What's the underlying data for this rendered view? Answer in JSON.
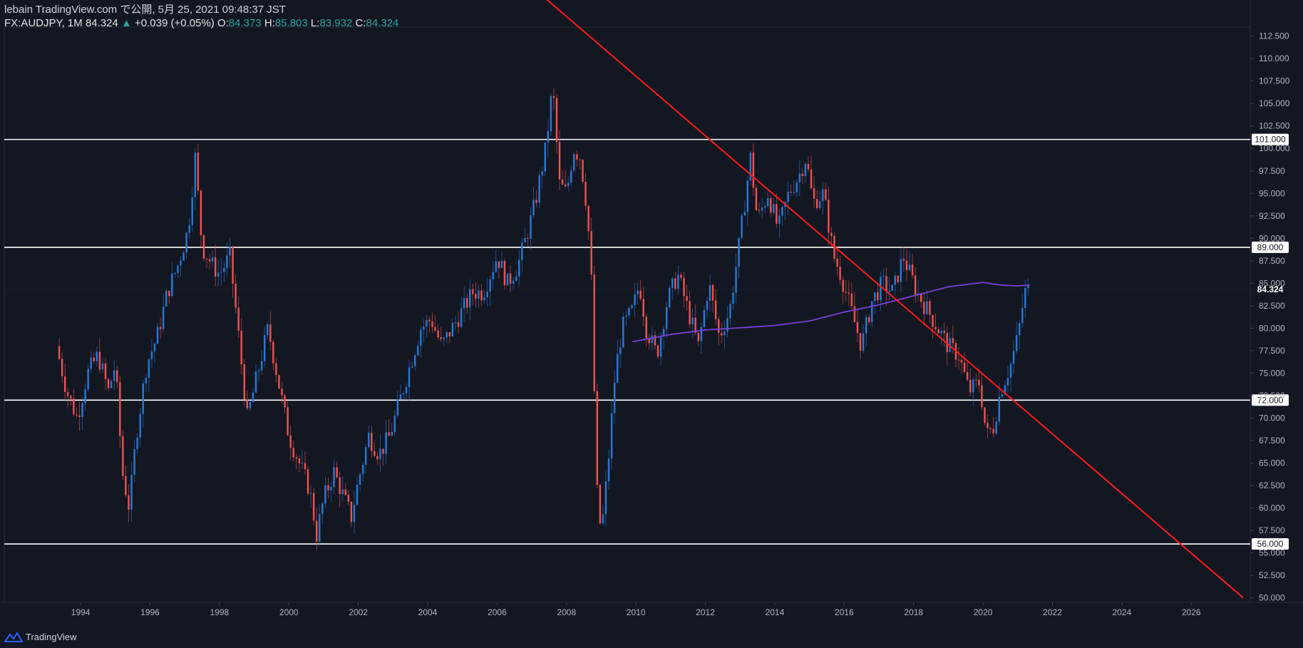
{
  "header": {
    "line1": "lebain TradingView.com で公開, 5月 25, 2021 09:48:37 JST",
    "symbol": "FX:AUDJPY, 1M",
    "last": "84.324",
    "change": "+0.039 (+0.05%)",
    "o_label": "O:",
    "o_value": "84.373",
    "h_label": "H:",
    "h_value": "85.803",
    "l_label": "L:",
    "l_value": "83.932",
    "c_label": "C:",
    "c_value": "84.324"
  },
  "footer": {
    "brand": "TradingView",
    "logo_icon": "tradingview-logo-icon"
  },
  "colors": {
    "background": "#131722",
    "up": "#2979d6",
    "down": "#ef5350",
    "trendline": "#ff1a1a",
    "ma": "#7b3fd6",
    "hline": "#ffffff"
  },
  "chart_data": {
    "type": "candlestick",
    "ylim": [
      49.5,
      113.5
    ],
    "xlim": [
      1991.8,
      2027.7
    ],
    "y_ticks": [
      "50.000",
      "52.500",
      "55.000",
      "57.500",
      "60.000",
      "62.500",
      "65.000",
      "67.500",
      "70.000",
      "72.500",
      "75.000",
      "77.500",
      "80.000",
      "82.500",
      "85.000",
      "87.500",
      "90.000",
      "92.500",
      "95.000",
      "97.500",
      "100.000",
      "102.500",
      "105.000",
      "107.500",
      "110.000",
      "112.500"
    ],
    "x_ticks": [
      "1994",
      "1996",
      "1998",
      "2000",
      "2002",
      "2004",
      "2006",
      "2008",
      "2010",
      "2012",
      "2014",
      "2016",
      "2018",
      "2020",
      "2022",
      "2024",
      "2026"
    ],
    "horizontal_levels": [
      {
        "value": 101.0,
        "label": "101.000"
      },
      {
        "value": 89.0,
        "label": "89.000"
      },
      {
        "value": 72.0,
        "label": "72.000"
      },
      {
        "value": 56.0,
        "label": "56.000"
      }
    ],
    "last_price": {
      "value": 84.324,
      "label": "84.324"
    },
    "trendline": [
      [
        2007.3,
        117.0
      ],
      [
        2027.5,
        50.0
      ]
    ],
    "moving_average": [
      [
        2009.9,
        78.5
      ],
      [
        2011.0,
        79.3
      ],
      [
        2012.0,
        79.8
      ],
      [
        2013.2,
        80.1
      ],
      [
        2014.0,
        80.3
      ],
      [
        2015.0,
        80.8
      ],
      [
        2016.0,
        81.8
      ],
      [
        2017.0,
        82.6
      ],
      [
        2018.0,
        83.6
      ],
      [
        2019.0,
        84.6
      ],
      [
        2020.0,
        85.1
      ],
      [
        2020.5,
        84.8
      ],
      [
        2021.0,
        84.7
      ],
      [
        2021.35,
        84.8
      ]
    ],
    "path": [
      [
        1993.3,
        78
      ],
      [
        1993.6,
        73
      ],
      [
        1993.9,
        70
      ],
      [
        1994.2,
        75
      ],
      [
        1994.5,
        77
      ],
      [
        1994.8,
        73
      ],
      [
        1995.0,
        76
      ],
      [
        1995.2,
        64
      ],
      [
        1995.4,
        60
      ],
      [
        1995.6,
        68
      ],
      [
        1995.9,
        76
      ],
      [
        1996.2,
        79
      ],
      [
        1996.5,
        84
      ],
      [
        1996.8,
        87
      ],
      [
        1997.1,
        91
      ],
      [
        1997.3,
        99
      ],
      [
        1997.5,
        89
      ],
      [
        1997.8,
        87
      ],
      [
        1998.0,
        86
      ],
      [
        1998.3,
        88
      ],
      [
        1998.5,
        81
      ],
      [
        1998.8,
        70
      ],
      [
        1999.1,
        75
      ],
      [
        1999.4,
        80
      ],
      [
        1999.7,
        74
      ],
      [
        2000.0,
        68
      ],
      [
        2000.3,
        65
      ],
      [
        2000.6,
        62
      ],
      [
        2000.8,
        57
      ],
      [
        2001.0,
        61
      ],
      [
        2001.3,
        64
      ],
      [
        2001.6,
        61
      ],
      [
        2001.8,
        59
      ],
      [
        2002.0,
        63
      ],
      [
        2002.3,
        68
      ],
      [
        2002.6,
        66
      ],
      [
        2002.9,
        68
      ],
      [
        2003.2,
        72
      ],
      [
        2003.5,
        76
      ],
      [
        2003.8,
        80
      ],
      [
        2004.1,
        81
      ],
      [
        2004.4,
        78
      ],
      [
        2004.7,
        80
      ],
      [
        2005.0,
        82
      ],
      [
        2005.3,
        84
      ],
      [
        2005.6,
        84
      ],
      [
        2005.8,
        86
      ],
      [
        2006.0,
        88
      ],
      [
        2006.3,
        85
      ],
      [
        2006.6,
        87
      ],
      [
        2006.9,
        91
      ],
      [
        2007.1,
        94
      ],
      [
        2007.4,
        100
      ],
      [
        2007.6,
        107
      ],
      [
        2007.8,
        96
      ],
      [
        2008.0,
        95
      ],
      [
        2008.2,
        100
      ],
      [
        2008.4,
        99
      ],
      [
        2008.6,
        93
      ],
      [
        2008.75,
        83
      ],
      [
        2008.85,
        63
      ],
      [
        2009.0,
        57
      ],
      [
        2009.2,
        65
      ],
      [
        2009.4,
        75
      ],
      [
        2009.6,
        80
      ],
      [
        2009.9,
        82
      ],
      [
        2010.1,
        85
      ],
      [
        2010.3,
        80
      ],
      [
        2010.6,
        77
      ],
      [
        2010.9,
        83
      ],
      [
        2011.2,
        86
      ],
      [
        2011.5,
        82
      ],
      [
        2011.8,
        78
      ],
      [
        2012.1,
        85
      ],
      [
        2012.4,
        79
      ],
      [
        2012.7,
        82
      ],
      [
        2013.0,
        90
      ],
      [
        2013.3,
        99
      ],
      [
        2013.5,
        92
      ],
      [
        2013.8,
        95
      ],
      [
        2014.1,
        91
      ],
      [
        2014.4,
        95
      ],
      [
        2014.7,
        97
      ],
      [
        2014.9,
        99
      ],
      [
        2015.1,
        94
      ],
      [
        2015.4,
        95
      ],
      [
        2015.7,
        88
      ],
      [
        2015.9,
        86
      ],
      [
        2016.2,
        82
      ],
      [
        2016.5,
        78
      ],
      [
        2016.8,
        83
      ],
      [
        2017.1,
        85
      ],
      [
        2017.4,
        84
      ],
      [
        2017.7,
        88
      ],
      [
        2017.9,
        86
      ],
      [
        2018.1,
        84
      ],
      [
        2018.4,
        82
      ],
      [
        2018.7,
        80
      ],
      [
        2019.0,
        78
      ],
      [
        2019.3,
        77
      ],
      [
        2019.6,
        73
      ],
      [
        2019.9,
        74
      ],
      [
        2020.1,
        68
      ],
      [
        2020.3,
        69
      ],
      [
        2020.5,
        73
      ],
      [
        2020.8,
        76
      ],
      [
        2021.0,
        79
      ],
      [
        2021.2,
        84
      ],
      [
        2021.35,
        84.3
      ]
    ]
  }
}
